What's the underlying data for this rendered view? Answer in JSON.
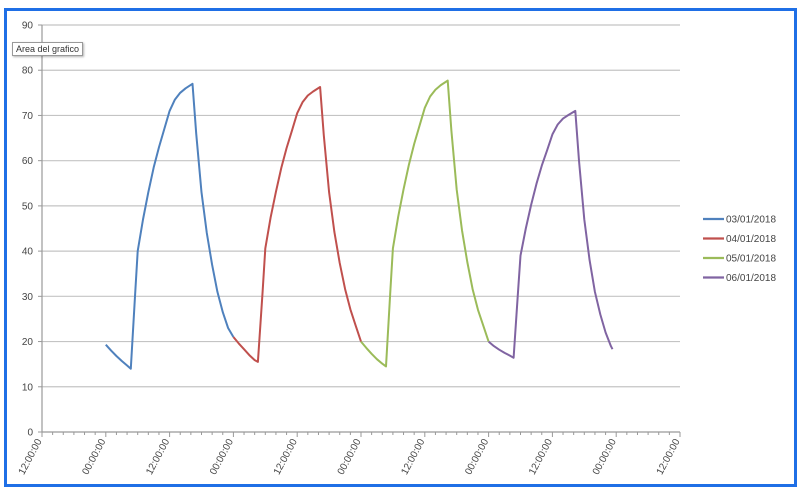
{
  "tooltip": "Area del grafico",
  "chart_data": {
    "type": "line",
    "title": "",
    "xlabel": "",
    "ylabel": "",
    "ylim": [
      0,
      90
    ],
    "yticks": [
      0,
      10,
      20,
      30,
      40,
      50,
      60,
      70,
      80,
      90
    ],
    "xlim_hours": [
      0,
      120
    ],
    "xtick_labels": [
      "12:00:00",
      "00:00:00",
      "12:00:00",
      "00:00:00",
      "12:00:00",
      "00:00:00",
      "12:00:00",
      "00:00:00",
      "12:00:00",
      "00:00:00",
      "12:00:00"
    ],
    "grid": true,
    "legend_position": "right",
    "series": [
      {
        "name": "03/01/2018",
        "color": "#4F81BD",
        "start_hour": 12,
        "points": [
          [
            0,
            19.3
          ],
          [
            1,
            18.0
          ],
          [
            2,
            16.8
          ],
          [
            3,
            15.7
          ],
          [
            4,
            14.7
          ],
          [
            4.7,
            14.0
          ],
          [
            5.5,
            30
          ],
          [
            6,
            40
          ],
          [
            7,
            47
          ],
          [
            8,
            53
          ],
          [
            9,
            58.5
          ],
          [
            10,
            63
          ],
          [
            11,
            67
          ],
          [
            12,
            71
          ],
          [
            13,
            73.5
          ],
          [
            14,
            75
          ],
          [
            15,
            76
          ],
          [
            16.3,
            77
          ],
          [
            17,
            66
          ],
          [
            18,
            53
          ],
          [
            19,
            44
          ],
          [
            20,
            37
          ],
          [
            21,
            31
          ],
          [
            22,
            26.5
          ],
          [
            23,
            23
          ],
          [
            24,
            21
          ]
        ]
      },
      {
        "name": "04/01/2018",
        "color": "#C0504D",
        "start_hour": 36,
        "points": [
          [
            0,
            21
          ],
          [
            1,
            19.6
          ],
          [
            2,
            18.3
          ],
          [
            3,
            17.0
          ],
          [
            4,
            15.9
          ],
          [
            4.6,
            15.5
          ],
          [
            5.5,
            31
          ],
          [
            6,
            40.6
          ],
          [
            7,
            47.4
          ],
          [
            8,
            53.1
          ],
          [
            9,
            58.4
          ],
          [
            10,
            62.8
          ],
          [
            11,
            66.6
          ],
          [
            12,
            70.5
          ],
          [
            13,
            72.9
          ],
          [
            14,
            74.4
          ],
          [
            15,
            75.3
          ],
          [
            16.3,
            76.3
          ],
          [
            17,
            65.6
          ],
          [
            18,
            53
          ],
          [
            19,
            44.2
          ],
          [
            20,
            37.4
          ],
          [
            21,
            31.6
          ],
          [
            22,
            27.1
          ],
          [
            23,
            23.5
          ],
          [
            24,
            20
          ]
        ]
      },
      {
        "name": "05/01/2018",
        "color": "#9BBB59",
        "start_hour": 60,
        "points": [
          [
            0,
            20
          ],
          [
            1,
            18.6
          ],
          [
            2,
            17.3
          ],
          [
            3,
            16.1
          ],
          [
            4,
            15.1
          ],
          [
            4.7,
            14.5
          ],
          [
            5.5,
            30.6
          ],
          [
            6,
            40.6
          ],
          [
            7,
            47.6
          ],
          [
            8,
            53.6
          ],
          [
            9,
            59.1
          ],
          [
            10,
            63.7
          ],
          [
            11,
            67.7
          ],
          [
            12,
            71.7
          ],
          [
            13,
            74.2
          ],
          [
            14,
            75.7
          ],
          [
            15,
            76.7
          ],
          [
            16.3,
            77.7
          ],
          [
            17,
            66.6
          ],
          [
            18,
            53.6
          ],
          [
            19,
            44.6
          ],
          [
            20,
            37.6
          ],
          [
            21,
            31.6
          ],
          [
            22,
            27
          ],
          [
            23,
            23.5
          ],
          [
            24,
            20
          ]
        ]
      },
      {
        "name": "06/01/2018",
        "color": "#8064A2",
        "start_hour": 84,
        "points": [
          [
            0,
            20
          ],
          [
            1,
            19
          ],
          [
            2,
            18.2
          ],
          [
            3,
            17.5
          ],
          [
            4,
            16.9
          ],
          [
            4.7,
            16.4
          ],
          [
            5.5,
            30.3
          ],
          [
            6,
            39
          ],
          [
            7,
            45
          ],
          [
            8,
            50.2
          ],
          [
            9,
            54.9
          ],
          [
            10,
            58.9
          ],
          [
            11,
            62.3
          ],
          [
            12,
            65.8
          ],
          [
            13,
            68
          ],
          [
            14,
            69.3
          ],
          [
            15,
            70.1
          ],
          [
            16.3,
            71
          ],
          [
            17,
            60
          ],
          [
            18,
            47
          ],
          [
            19,
            38
          ],
          [
            20,
            31
          ],
          [
            21,
            26
          ],
          [
            22,
            22
          ],
          [
            23,
            19
          ],
          [
            23.3,
            18.3
          ]
        ]
      }
    ]
  }
}
